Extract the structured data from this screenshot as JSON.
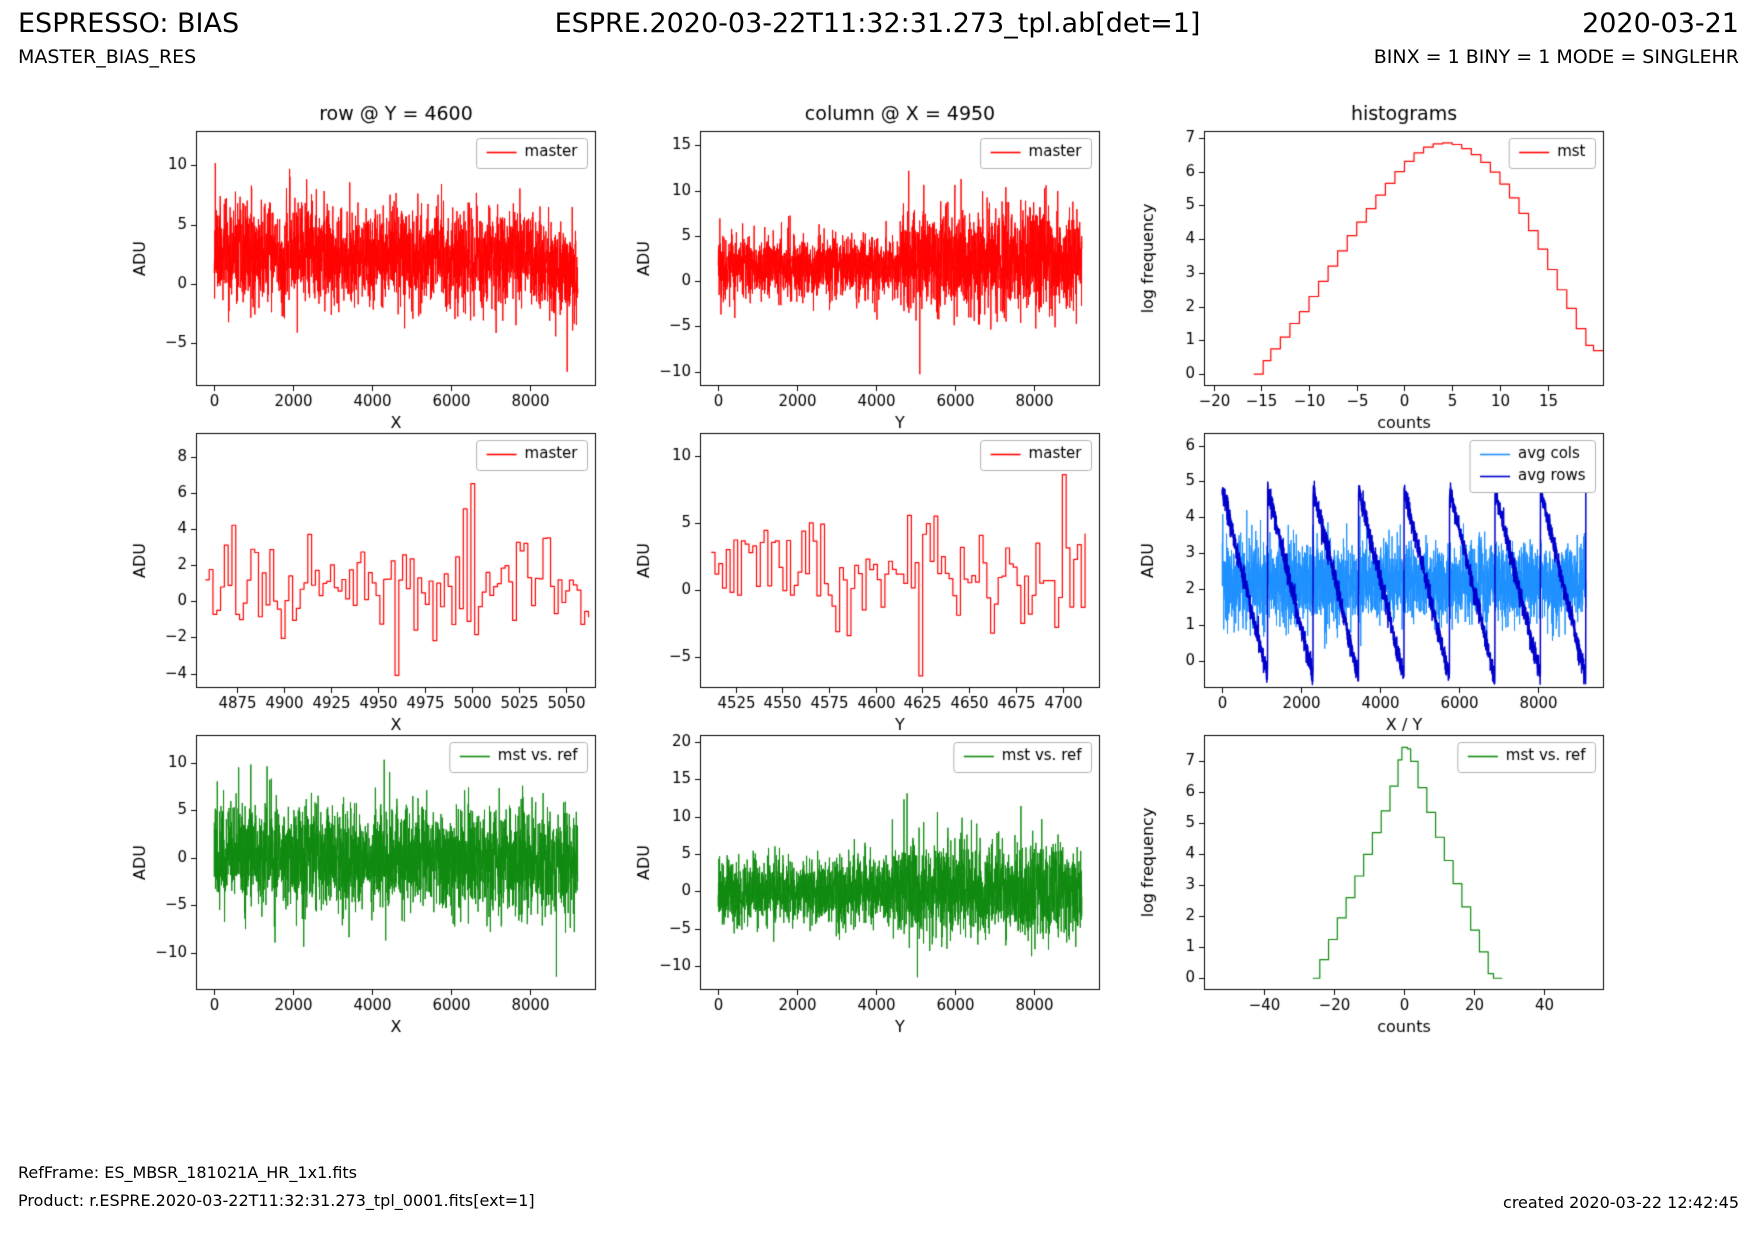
{
  "header": {
    "app_title": "ESPRESSO: BIAS",
    "recipe": "MASTER_BIAS_RES",
    "frame_title": "ESPRE.2020-03-22T11:32:31.273_tpl.ab[det=1]",
    "date": "2020-03-21",
    "mode_line": "BINX = 1 BINY = 1 MODE = SINGLEHR"
  },
  "footer": {
    "refframe": "RefFrame: ES_MBSR_181021A_HR_1x1.fits",
    "product": "Product: r.ESPRE.2020-03-22T11:32:31.273_tpl_0001.fits[ext=1]",
    "created": "created 2020-03-22 12:42:45"
  },
  "colors": {
    "master_red": "#ff0000",
    "diff_green": "#0f8a0f",
    "avg_cols_blue": "#1e90ff",
    "avg_rows_blue": "#0000cd"
  },
  "chart_data": [
    {
      "id": "row-cut-master",
      "type": "line",
      "title": "row @ Y = 4600",
      "xlabel": "X",
      "ylabel": "ADU",
      "xlim": [
        -460,
        9660
      ],
      "ylim": [
        -8.6,
        12.9
      ],
      "xticks": [
        0,
        2000,
        4000,
        6000,
        8000
      ],
      "yticks": [
        -5,
        0,
        5,
        10
      ],
      "grid": false,
      "legend_position": "top-right",
      "legend": [
        {
          "label": "master",
          "color": "#ff0000"
        }
      ],
      "series": [
        {
          "name": "master",
          "kind": "noise",
          "color": "#ff0000",
          "lw": 1,
          "seed": 11,
          "n": 2600,
          "x0": 0,
          "x1": 9200,
          "mean": [
            [
              0,
              3.2
            ],
            [
              400,
              2.4
            ],
            [
              1500,
              2.6
            ],
            [
              1750,
              1.3
            ],
            [
              1900,
              2.8
            ],
            [
              2600,
              2.9
            ],
            [
              3500,
              2.2
            ],
            [
              4400,
              2.7
            ],
            [
              5300,
              2.3
            ],
            [
              5650,
              3.1
            ],
            [
              5900,
              1.6
            ],
            [
              6800,
              2.3
            ],
            [
              7600,
              2.6
            ],
            [
              8300,
              1.8
            ],
            [
              8700,
              0.9
            ],
            [
              9200,
              0.6
            ]
          ],
          "sigma": [
            [
              0,
              2.0
            ],
            [
              9200,
              2.0
            ]
          ],
          "clip": [
            -7.6,
            10.4
          ],
          "spikes": [
            [
              30,
              10.2
            ],
            [
              8930,
              -7.4
            ]
          ]
        }
      ]
    },
    {
      "id": "column-cut-master",
      "type": "line",
      "title": "column @ X = 4950",
      "xlabel": "Y",
      "ylabel": "ADU",
      "xlim": [
        -460,
        9660
      ],
      "ylim": [
        -11.6,
        16.6
      ],
      "xticks": [
        0,
        2000,
        4000,
        6000,
        8000
      ],
      "yticks": [
        -10,
        -5,
        0,
        5,
        10,
        15
      ],
      "grid": false,
      "legend_position": "top-right",
      "legend": [
        {
          "label": "master",
          "color": "#ff0000"
        }
      ],
      "series": [
        {
          "name": "master",
          "kind": "noise",
          "color": "#ff0000",
          "lw": 1,
          "seed": 22,
          "n": 2600,
          "x0": 0,
          "x1": 9200,
          "mean": [
            [
              0,
              1.6
            ],
            [
              4550,
              1.6
            ],
            [
              4650,
              2.3
            ],
            [
              9200,
              2.3
            ]
          ],
          "sigma": [
            [
              0,
              1.7
            ],
            [
              4550,
              1.7
            ],
            [
              4650,
              2.9
            ],
            [
              9200,
              2.9
            ]
          ],
          "clip": [
            -10.4,
            12.3
          ],
          "spikes": [
            [
              4820,
              12.2
            ],
            [
              5100,
              -10.3
            ]
          ]
        }
      ]
    },
    {
      "id": "histogram-master",
      "type": "histogram",
      "title": "histograms",
      "xlabel": "counts",
      "ylabel": "log frequency",
      "xlim": [
        -21,
        20.9
      ],
      "ylim": [
        -0.35,
        7.2
      ],
      "xticks": [
        -20,
        -15,
        -10,
        -5,
        0,
        5,
        10,
        15
      ],
      "yticks": [
        0,
        1,
        2,
        3,
        4,
        5,
        6,
        7
      ],
      "grid": false,
      "legend_position": "top-right",
      "legend": [
        {
          "label": "mst",
          "color": "#ff0000"
        }
      ],
      "series": [
        {
          "name": "mst",
          "kind": "hist",
          "color": "#ff0000",
          "lw": 1.2,
          "bw": 1,
          "points": [
            [
              -15.8,
              0
            ],
            [
              -14.8,
              0.4
            ],
            [
              -14,
              0.75
            ],
            [
              -13,
              1.1
            ],
            [
              -12,
              1.5
            ],
            [
              -11,
              1.85
            ],
            [
              -10,
              2.3
            ],
            [
              -9,
              2.75
            ],
            [
              -8,
              3.2
            ],
            [
              -7,
              3.65
            ],
            [
              -6,
              4.1
            ],
            [
              -5,
              4.5
            ],
            [
              -4,
              4.9
            ],
            [
              -3,
              5.3
            ],
            [
              -2,
              5.65
            ],
            [
              -1,
              6.0
            ],
            [
              0,
              6.3
            ],
            [
              1,
              6.55
            ],
            [
              2,
              6.72
            ],
            [
              3,
              6.82
            ],
            [
              4,
              6.85
            ],
            [
              5,
              6.8
            ],
            [
              6,
              6.68
            ],
            [
              7,
              6.5
            ],
            [
              8,
              6.27
            ],
            [
              9,
              5.98
            ],
            [
              10,
              5.63
            ],
            [
              11,
              5.22
            ],
            [
              12,
              4.76
            ],
            [
              13,
              4.25
            ],
            [
              14,
              3.7
            ],
            [
              15,
              3.1
            ],
            [
              16,
              2.5
            ],
            [
              17,
              1.95
            ],
            [
              18,
              1.35
            ],
            [
              19,
              0.85
            ],
            [
              19.8,
              0.7
            ]
          ]
        }
      ]
    },
    {
      "id": "row-cut-zoom-master",
      "type": "line",
      "xlabel": "X",
      "ylabel": "ADU",
      "xlim": [
        4853,
        5066
      ],
      "ylim": [
        -4.8,
        9.3
      ],
      "xticks": [
        4875,
        4900,
        4925,
        4950,
        4975,
        5000,
        5025,
        5050
      ],
      "yticks": [
        -4,
        -2,
        0,
        2,
        4,
        6,
        8
      ],
      "grid": false,
      "legend_position": "top-right",
      "legend": [
        {
          "label": "master",
          "color": "#ff0000"
        }
      ],
      "series": [
        {
          "name": "master",
          "kind": "steps",
          "color": "#ff0000",
          "lw": 1.2,
          "seed": 44,
          "n": 102,
          "x0": 4858,
          "x1": 5062,
          "mean": [
            [
              4858,
              0.7
            ],
            [
              5062,
              0.7
            ]
          ],
          "sigma": [
            [
              4858,
              1.5
            ],
            [
              5062,
              1.5
            ]
          ],
          "clip": [
            -4.2,
            6.5
          ],
          "spikes": [
            [
              4873,
              4.2
            ],
            [
              4912,
              3.7
            ],
            [
              4958,
              -4.1
            ],
            [
              4996,
              5.1
            ],
            [
              5000,
              6.5
            ],
            [
              5040,
              3.5
            ]
          ]
        }
      ]
    },
    {
      "id": "column-cut-zoom-master",
      "type": "line",
      "xlabel": "Y",
      "ylabel": "ADU",
      "xlim": [
        4506,
        4720
      ],
      "ylim": [
        -7.3,
        11.7
      ],
      "xticks": [
        4525,
        4550,
        4575,
        4600,
        4625,
        4650,
        4675,
        4700
      ],
      "yticks": [
        -5,
        0,
        5,
        10
      ],
      "grid": false,
      "legend_position": "top-right",
      "legend": [
        {
          "label": "master",
          "color": "#ff0000"
        }
      ],
      "series": [
        {
          "name": "master",
          "kind": "steps",
          "color": "#ff0000",
          "lw": 1.2,
          "seed": 55,
          "n": 100,
          "x0": 4512,
          "x1": 4712,
          "mean": [
            [
              4512,
              1.2
            ],
            [
              4712,
              1.2
            ]
          ],
          "sigma": [
            [
              4512,
              1.8
            ],
            [
              4712,
              1.8
            ]
          ],
          "clip": [
            -6.5,
            8.6
          ],
          "spikes": [
            [
              4565,
              5.0
            ],
            [
              4585,
              -3.4
            ],
            [
              4624,
              -6.4
            ],
            [
              4631,
              5.5
            ],
            [
              4700,
              8.6
            ]
          ]
        }
      ]
    },
    {
      "id": "avg-cols-rows",
      "type": "line",
      "xlabel": "X / Y",
      "ylabel": "ADU",
      "xlim": [
        -460,
        9660
      ],
      "ylim": [
        -0.75,
        6.35
      ],
      "xticks": [
        0,
        2000,
        4000,
        6000,
        8000
      ],
      "yticks": [
        0,
        1,
        2,
        3,
        4,
        5,
        6
      ],
      "grid": false,
      "legend_position": "top-right",
      "legend": [
        {
          "label": "avg cols",
          "color": "#1e90ff"
        },
        {
          "label": "avg rows",
          "color": "#0000cd"
        }
      ],
      "series": [
        {
          "name": "avg cols",
          "kind": "noise",
          "color": "#1e90ff",
          "lw": 1,
          "seed": 66,
          "n": 3000,
          "x0": 0,
          "x1": 9200,
          "mean": [
            [
              0,
              2.2
            ],
            [
              9200,
              2.2
            ]
          ],
          "sigma": [
            [
              0,
              0.55
            ],
            [
              9200,
              0.55
            ]
          ],
          "clip": [
            0.15,
            4.25
          ]
        },
        {
          "name": "avg rows",
          "kind": "sawtooth",
          "color": "#0000cd",
          "lw": 1.5,
          "seed": 67,
          "n": 3000,
          "x0": 0,
          "x1": 9200,
          "period": 1150,
          "top": 4.8,
          "bottom": -0.45,
          "jitter": 0.15
        }
      ]
    },
    {
      "id": "row-cut-diff",
      "type": "line",
      "xlabel": "X",
      "ylabel": "ADU",
      "xlim": [
        -460,
        9660
      ],
      "ylim": [
        -13.9,
        12.9
      ],
      "xticks": [
        0,
        2000,
        4000,
        6000,
        8000
      ],
      "yticks": [
        -10,
        -5,
        0,
        5,
        10
      ],
      "grid": false,
      "legend_position": "top-right",
      "legend": [
        {
          "label": "mst vs. ref",
          "color": "#0f8a0f"
        }
      ],
      "series": [
        {
          "name": "mst vs. ref",
          "kind": "noise",
          "color": "#0f8a0f",
          "lw": 1,
          "seed": 77,
          "n": 2600,
          "x0": 0,
          "x1": 9200,
          "mean": [
            [
              0,
              0.3
            ],
            [
              4000,
              0
            ],
            [
              9200,
              -0.4
            ]
          ],
          "sigma": [
            [
              0,
              2.7
            ],
            [
              9200,
              2.7
            ]
          ],
          "clip": [
            -12.6,
            10.4
          ],
          "spikes": [
            [
              620,
              9.5
            ],
            [
              4300,
              10.3
            ],
            [
              8660,
              -12.5
            ]
          ]
        }
      ]
    },
    {
      "id": "column-cut-diff",
      "type": "line",
      "xlabel": "Y",
      "ylabel": "ADU",
      "xlim": [
        -460,
        9660
      ],
      "ylim": [
        -13.2,
        20.9
      ],
      "xticks": [
        0,
        2000,
        4000,
        6000,
        8000
      ],
      "yticks": [
        -10,
        -5,
        0,
        5,
        10,
        15,
        20
      ],
      "grid": false,
      "legend_position": "top-right",
      "legend": [
        {
          "label": "mst vs. ref",
          "color": "#0f8a0f"
        }
      ],
      "series": [
        {
          "name": "mst vs. ref",
          "kind": "noise",
          "color": "#0f8a0f",
          "lw": 1,
          "seed": 88,
          "n": 2600,
          "x0": 0,
          "x1": 9200,
          "mean": [
            [
              0,
              0
            ],
            [
              9200,
              0
            ]
          ],
          "sigma": [
            [
              0,
              2.2
            ],
            [
              4550,
              2.2
            ],
            [
              4680,
              3.1
            ],
            [
              9200,
              3.1
            ]
          ],
          "clip": [
            -11.6,
            13.2
          ],
          "spikes": [
            [
              4700,
              12.3
            ],
            [
              4780,
              13.1
            ],
            [
              5040,
              -11.5
            ],
            [
              7660,
              11.4
            ]
          ]
        }
      ]
    },
    {
      "id": "histogram-diff",
      "type": "histogram",
      "xlabel": "counts",
      "ylabel": "log frequency",
      "xlim": [
        -57,
        57
      ],
      "ylim": [
        -0.38,
        7.85
      ],
      "xticks": [
        -40,
        -20,
        0,
        20,
        40
      ],
      "yticks": [
        0,
        1,
        2,
        3,
        4,
        5,
        6,
        7
      ],
      "grid": false,
      "legend_position": "top-right",
      "legend": [
        {
          "label": "mst vs. ref",
          "color": "#0f8a0f"
        }
      ],
      "series": [
        {
          "name": "mst vs. ref",
          "kind": "hist",
          "color": "#0f8a0f",
          "lw": 1.2,
          "bw": 2.5,
          "points": [
            [
              -26,
              0
            ],
            [
              -24,
              0.6
            ],
            [
              -21.5,
              1.25
            ],
            [
              -19,
              1.95
            ],
            [
              -16.5,
              2.6
            ],
            [
              -14,
              3.3
            ],
            [
              -11.5,
              4.0
            ],
            [
              -9,
              4.7
            ],
            [
              -6.5,
              5.4
            ],
            [
              -4,
              6.2
            ],
            [
              -1.7,
              7.05
            ],
            [
              -0.6,
              7.45
            ],
            [
              1,
              7.4
            ],
            [
              1.9,
              7.0
            ],
            [
              4,
              6.15
            ],
            [
              6.5,
              5.35
            ],
            [
              9,
              4.55
            ],
            [
              11.5,
              3.8
            ],
            [
              14,
              3.05
            ],
            [
              16.5,
              2.3
            ],
            [
              19,
              1.55
            ],
            [
              21.5,
              0.85
            ],
            [
              24,
              0.15
            ],
            [
              25.5,
              0
            ]
          ]
        }
      ]
    }
  ]
}
